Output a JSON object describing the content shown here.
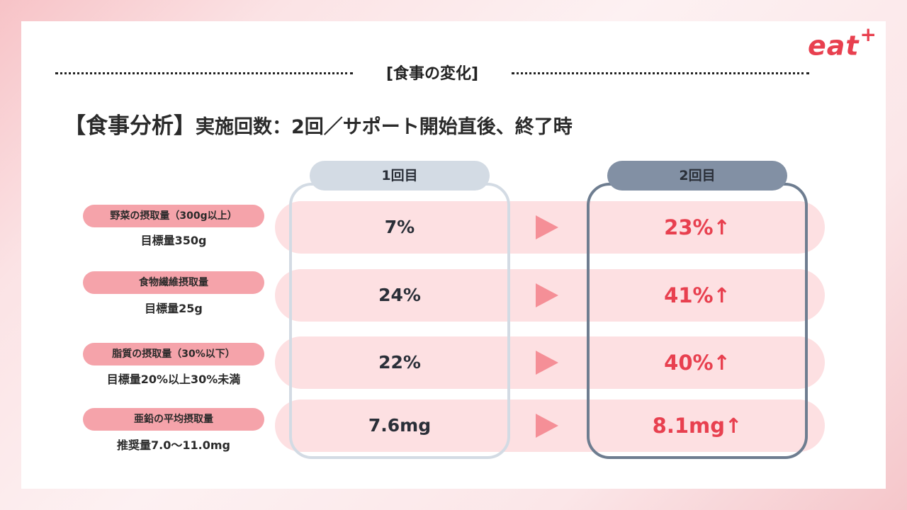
{
  "logo": {
    "text": "eat",
    "sup": "+"
  },
  "section_title": "[食事の変化]",
  "headline": {
    "bracket": "【食事分析】",
    "detail": "実施回数：2回／サポート開始直後、終了時"
  },
  "columns": {
    "first": "1回目",
    "second": "2回目"
  },
  "rows": [
    {
      "label": "野菜の摂取量（300g以上）",
      "target": "目標量350g",
      "first": "7%",
      "second": "23%↑"
    },
    {
      "label": "食物繊維摂取量",
      "target": "目標量25g",
      "first": "24%",
      "second": "41%↑"
    },
    {
      "label": "脂質の摂取量（30%以下）",
      "target": "目標量20%以上30%未満",
      "first": "22%",
      "second": "40%↑"
    },
    {
      "label": "亜鉛の平均摂取量",
      "target": "推奨量7.0〜11.0mg",
      "first": "7.6mg",
      "second": "8.1mg↑"
    }
  ],
  "colors": {
    "accent": "#e8404f",
    "band": "#fde0e2",
    "pill": "#f5a3aa",
    "arrow": "#f58f97",
    "col1": "#d3dbe4",
    "col2": "#6e7d90"
  }
}
